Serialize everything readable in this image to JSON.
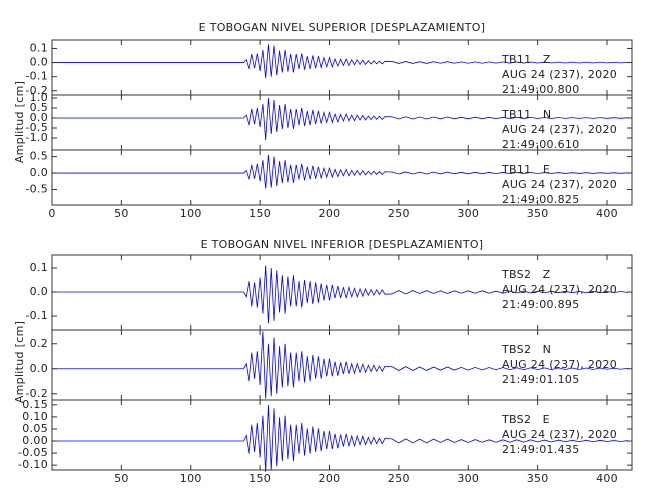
{
  "chart_data": [
    {
      "type": "line",
      "title": "E TOBOGAN NIVEL SUPERIOR [DESPLAZAMIENTO]",
      "ylabel": "Amplitud [cm]",
      "x": [
        0,
        138,
        140,
        142,
        144,
        146,
        148,
        150,
        152,
        154,
        156,
        158,
        160,
        162,
        164,
        166,
        168,
        170,
        172,
        174,
        176,
        178,
        180,
        182,
        184,
        186,
        188,
        190,
        192,
        194,
        196,
        198,
        200,
        202,
        204,
        206,
        208,
        210,
        212,
        214,
        216,
        218,
        220,
        222,
        224,
        226,
        228,
        230,
        232,
        234,
        236,
        238,
        240,
        245,
        250,
        255,
        260,
        265,
        270,
        275,
        280,
        285,
        290,
        295,
        300,
        305,
        310,
        315,
        320,
        325,
        330,
        335,
        340,
        345,
        350,
        355,
        360,
        365,
        370,
        375,
        380,
        385,
        390,
        395,
        400,
        405,
        410,
        415
      ],
      "xlim": [
        0,
        418
      ],
      "xticks": [
        0,
        50,
        100,
        150,
        200,
        250,
        300,
        350,
        400
      ],
      "panels": [
        {
          "annotation": [
            "TB11   Z",
            "AUG 24 (237), 2020",
            "21:49:00.800"
          ],
          "color": "#0000ff",
          "ylim": [
            -0.23,
            0.16
          ],
          "yticks": [
            {
              "value": 0.1,
              "label": "0.1"
            },
            {
              "value": 0,
              "label": "0.0"
            },
            {
              "value": -0.1,
              "label": "-0.1"
            },
            {
              "value": -0.2,
              "label": "-0.2"
            }
          ],
          "values": [
            0,
            0,
            0.02,
            -0.045,
            0.06,
            -0.04,
            0.065,
            -0.06,
            0.09,
            -0.11,
            0.13,
            -0.1,
            0.12,
            -0.09,
            0.085,
            -0.07,
            0.09,
            -0.065,
            0.06,
            -0.07,
            0.06,
            -0.045,
            0.065,
            -0.05,
            0.045,
            -0.045,
            0.05,
            -0.04,
            0.045,
            -0.035,
            0.035,
            -0.03,
            0.035,
            -0.03,
            0.025,
            -0.025,
            0.025,
            -0.02,
            0.025,
            -0.02,
            0.02,
            -0.015,
            0.02,
            -0.013,
            0.017,
            -0.013,
            0.013,
            -0.01,
            0.013,
            -0.009,
            0.01,
            -0.009,
            0.009,
            0.008,
            -0.006,
            0.008,
            -0.006,
            0.006,
            -0.006,
            0.006,
            -0.005,
            0.006,
            -0.005,
            0.005,
            -0.005,
            0.005,
            -0.005,
            0.005,
            -0.004,
            0.005,
            -0.004,
            0.004,
            -0.004,
            0.004,
            -0.003,
            0.003,
            -0.003,
            0.003,
            -0.003,
            0.003,
            -0.003,
            0.003,
            -0.003,
            0.003,
            -0.002,
            0.002,
            -0.002,
            0.002
          ]
        },
        {
          "annotation": [
            "TB11   N",
            "AUG 24 (237), 2020",
            "21:49:00.610"
          ],
          "color": "#0000ff",
          "ylim": [
            -1.6,
            1.15
          ],
          "yticks": [
            {
              "value": 1,
              "label": "1.0"
            },
            {
              "value": 0.5,
              "label": "0.5"
            },
            {
              "value": 0,
              "label": "0.0"
            },
            {
              "value": -0.5,
              "label": "-0.5"
            },
            {
              "value": -1,
              "label": "-1.0"
            }
          ],
          "values": [
            0,
            0,
            0.15,
            -0.35,
            0.45,
            -0.3,
            0.5,
            -0.45,
            0.7,
            -1.1,
            1.0,
            -0.8,
            0.9,
            -0.7,
            0.65,
            -0.55,
            0.7,
            -0.5,
            0.45,
            -0.55,
            0.45,
            -0.35,
            0.5,
            -0.4,
            0.35,
            -0.35,
            0.4,
            -0.3,
            0.35,
            -0.28,
            0.28,
            -0.22,
            0.28,
            -0.22,
            0.2,
            -0.2,
            0.18,
            -0.15,
            0.2,
            -0.14,
            0.14,
            -0.13,
            0.14,
            -0.1,
            0.13,
            -0.1,
            0.1,
            -0.08,
            0.1,
            -0.07,
            0.08,
            -0.07,
            0.07,
            0.06,
            -0.05,
            0.06,
            -0.05,
            0.05,
            -0.05,
            0.05,
            -0.04,
            0.05,
            -0.04,
            0.04,
            -0.04,
            0.04,
            -0.035,
            0.035,
            -0.03,
            0.035,
            -0.03,
            0.03,
            -0.03,
            0.03,
            -0.025,
            0.025,
            -0.025,
            0.025,
            -0.02,
            0.02,
            -0.02,
            0.02,
            -0.02,
            0.02,
            -0.015,
            0.015,
            -0.015,
            0.015
          ]
        },
        {
          "annotation": [
            "TB11   E",
            "AUG 24 (237), 2020",
            "21:49:00.825"
          ],
          "color": "#0000ff",
          "ylim": [
            -0.97,
            0.7
          ],
          "yticks": [
            {
              "value": 0.5,
              "label": "0.5"
            },
            {
              "value": 0,
              "label": "0.0"
            },
            {
              "value": -0.5,
              "label": "-0.5"
            }
          ],
          "values": [
            0,
            0,
            0.08,
            -0.19,
            0.25,
            -0.17,
            0.28,
            -0.25,
            0.39,
            -0.47,
            0.55,
            -0.44,
            0.5,
            -0.39,
            0.36,
            -0.3,
            0.39,
            -0.28,
            0.25,
            -0.3,
            0.25,
            -0.19,
            0.28,
            -0.22,
            0.19,
            -0.19,
            0.22,
            -0.17,
            0.19,
            -0.15,
            0.15,
            -0.12,
            0.15,
            -0.12,
            0.11,
            -0.11,
            0.1,
            -0.08,
            0.11,
            -0.08,
            0.08,
            -0.07,
            0.08,
            -0.055,
            0.07,
            -0.055,
            0.055,
            -0.045,
            0.055,
            -0.04,
            0.045,
            -0.04,
            0.04,
            0.033,
            -0.028,
            0.033,
            -0.028,
            0.028,
            -0.028,
            0.028,
            -0.022,
            0.028,
            -0.022,
            0.022,
            -0.022,
            0.022,
            -0.019,
            0.019,
            -0.017,
            0.019,
            -0.017,
            0.017,
            -0.017,
            0.017,
            -0.014,
            0.014,
            -0.014,
            0.014,
            -0.011,
            0.011,
            -0.011,
            0.011,
            -0.011,
            0.011,
            -0.008,
            0.008,
            -0.008,
            0.008
          ]
        }
      ]
    },
    {
      "type": "line",
      "title": "E TOBOGAN NIVEL INFERIOR [DESPLAZAMIENTO]",
      "ylabel": "Amplitud [cm]",
      "x": [
        0,
        138,
        140,
        142,
        144,
        146,
        148,
        150,
        152,
        154,
        156,
        158,
        160,
        162,
        164,
        166,
        168,
        170,
        172,
        174,
        176,
        178,
        180,
        182,
        184,
        186,
        188,
        190,
        192,
        194,
        196,
        198,
        200,
        202,
        204,
        206,
        208,
        210,
        212,
        214,
        216,
        218,
        220,
        222,
        224,
        226,
        228,
        230,
        232,
        234,
        236,
        238,
        240,
        245,
        250,
        255,
        260,
        265,
        270,
        275,
        280,
        285,
        290,
        295,
        300,
        305,
        310,
        315,
        320,
        325,
        330,
        335,
        340,
        345,
        350,
        355,
        360,
        365,
        370,
        375,
        380,
        385,
        390,
        395,
        400,
        405,
        410,
        415
      ],
      "xlim": [
        0,
        418
      ],
      "xticks": [
        50,
        100,
        150,
        200,
        250,
        300,
        350,
        400
      ],
      "panels": [
        {
          "annotation": [
            "TBS2   Z",
            "AUG 24 (237), 2020",
            "21:49:00.895"
          ],
          "color": "#0000ff",
          "ylim": [
            -0.158,
            0.154
          ],
          "yticks": [
            0.1,
            {
              "value": 0,
              "label": "0.0"
            },
            -0.1
          ],
          "values": [
            0,
            0,
            -0.02,
            0.045,
            -0.06,
            0.04,
            -0.065,
            0.06,
            -0.09,
            0.11,
            -0.13,
            0.1,
            -0.12,
            0.09,
            -0.085,
            0.07,
            -0.09,
            0.065,
            -0.06,
            0.07,
            -0.06,
            0.045,
            -0.065,
            0.05,
            -0.045,
            0.045,
            -0.05,
            0.04,
            -0.045,
            0.035,
            -0.035,
            0.03,
            -0.035,
            0.03,
            -0.025,
            0.025,
            -0.025,
            0.02,
            -0.025,
            0.02,
            -0.02,
            0.015,
            -0.02,
            0.013,
            -0.017,
            0.013,
            -0.013,
            0.01,
            -0.013,
            0.009,
            -0.01,
            0.009,
            -0.009,
            -0.008,
            0.006,
            -0.008,
            0.006,
            -0.006,
            0.006,
            -0.006,
            0.005,
            -0.006,
            0.005,
            -0.005,
            0.005,
            -0.005,
            0.005,
            -0.005,
            0.004,
            -0.005,
            0.004,
            -0.004,
            0.004,
            -0.004,
            0.003,
            -0.003,
            0.003,
            -0.003,
            0.003,
            -0.003,
            0.003,
            -0.003,
            0.003,
            -0.003,
            0.002,
            -0.002,
            0.002,
            -0.002
          ]
        },
        {
          "annotation": [
            "TBS2   N",
            "AUG 24 (237), 2020",
            "21:49:01.105"
          ],
          "color": "#0000ff",
          "ylim": [
            -0.25,
            0.31
          ],
          "yticks": [
            0.2,
            {
              "value": 0,
              "label": "0.0"
            },
            -0.2
          ],
          "values": [
            0,
            0,
            0.04,
            -0.1,
            0.13,
            -0.08,
            0.14,
            -0.13,
            0.3,
            -0.24,
            0.2,
            -0.22,
            0.25,
            -0.2,
            0.18,
            -0.15,
            0.2,
            -0.14,
            0.13,
            -0.15,
            0.13,
            -0.1,
            0.14,
            -0.11,
            0.1,
            -0.1,
            0.11,
            -0.08,
            0.1,
            -0.08,
            0.08,
            -0.06,
            0.08,
            -0.06,
            0.056,
            -0.056,
            0.05,
            -0.042,
            0.056,
            -0.04,
            0.04,
            -0.036,
            0.04,
            -0.028,
            0.036,
            -0.028,
            0.028,
            -0.022,
            0.028,
            -0.02,
            0.022,
            -0.02,
            0.02,
            0.017,
            -0.014,
            0.017,
            -0.014,
            0.014,
            -0.014,
            0.014,
            -0.011,
            0.014,
            -0.011,
            0.011,
            -0.011,
            0.011,
            -0.01,
            0.01,
            -0.008,
            0.01,
            -0.008,
            0.008,
            -0.008,
            0.008,
            -0.007,
            0.007,
            -0.007,
            0.007,
            -0.006,
            0.006,
            -0.006,
            0.006,
            -0.006,
            0.006,
            -0.004,
            0.004,
            -0.004,
            0.004
          ]
        },
        {
          "annotation": [
            "TBS2   E",
            "AUG 24 (237), 2020",
            "21:49:01.435"
          ],
          "color": "#0000ff",
          "ylim": [
            -0.12,
            0.17
          ],
          "yticks": [
            {
              "value": 0.15,
              "label": "0.15"
            },
            {
              "value": 0.1,
              "label": "0.10"
            },
            {
              "value": 0.05,
              "label": "0.05"
            },
            {
              "value": 0,
              "label": "0.00"
            },
            {
              "value": -0.05,
              "label": "-0.05"
            },
            {
              "value": -0.1,
              "label": "-0.10"
            }
          ],
          "values": [
            0,
            0,
            0.023,
            -0.052,
            0.068,
            -0.045,
            0.075,
            -0.068,
            0.105,
            -0.128,
            0.15,
            -0.12,
            0.135,
            -0.105,
            0.098,
            -0.083,
            0.105,
            -0.075,
            0.068,
            -0.083,
            0.068,
            -0.052,
            0.075,
            -0.06,
            0.052,
            -0.052,
            0.06,
            -0.045,
            0.052,
            -0.042,
            0.042,
            -0.033,
            0.042,
            -0.033,
            0.03,
            -0.03,
            0.027,
            -0.023,
            0.03,
            -0.021,
            0.021,
            -0.02,
            0.021,
            -0.015,
            0.02,
            -0.015,
            0.015,
            -0.012,
            0.015,
            -0.011,
            0.012,
            -0.011,
            0.011,
            0.009,
            -0.008,
            0.009,
            -0.008,
            0.008,
            -0.008,
            0.008,
            -0.006,
            0.008,
            -0.006,
            0.006,
            -0.006,
            0.006,
            -0.005,
            0.005,
            -0.005,
            0.005,
            -0.005,
            0.005,
            -0.005,
            0.005,
            -0.004,
            0.004,
            -0.004,
            0.004,
            -0.003,
            0.003,
            -0.003,
            0.003,
            -0.003,
            0.003,
            -0.002,
            0.002,
            -0.002,
            0.002
          ]
        }
      ]
    }
  ]
}
